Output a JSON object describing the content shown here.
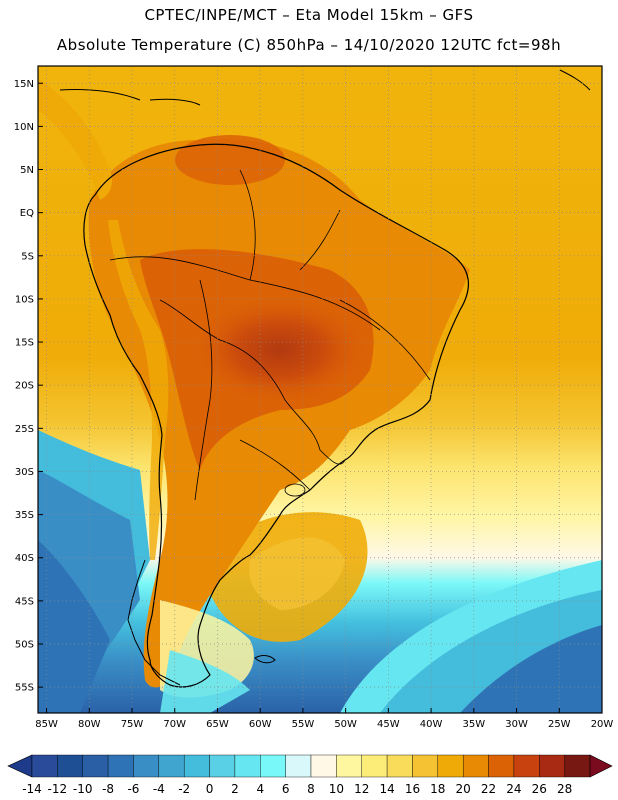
{
  "header": {
    "title_line1": "CPTEC/INPE/MCT –  Eta Model 15km – GFS",
    "title_line2": "Absolute Temperature (C) 850hPa – 14/10/2020 12UTC fct=98h"
  },
  "map": {
    "lat_labels": [
      "15N",
      "10N",
      "5N",
      "EQ",
      "5S",
      "10S",
      "15S",
      "20S",
      "25S",
      "30S",
      "35S",
      "40S",
      "45S",
      "50S",
      "55S"
    ],
    "lat_values": [
      15,
      10,
      5,
      0,
      -5,
      -10,
      -15,
      -20,
      -25,
      -30,
      -35,
      -40,
      -45,
      -50,
      -55
    ],
    "lon_labels": [
      "85W",
      "80W",
      "75W",
      "70W",
      "65W",
      "60W",
      "55W",
      "50W",
      "45W",
      "40W",
      "35W",
      "30W",
      "25W",
      "20W"
    ],
    "lon_values": [
      -85,
      -80,
      -75,
      -70,
      -65,
      -60,
      -55,
      -50,
      -45,
      -40,
      -35,
      -30,
      -25,
      -20
    ],
    "extent": {
      "lon_min": -86,
      "lon_max": -20,
      "lat_min": -58,
      "lat_max": 17
    }
  },
  "colorbar": {
    "labels": [
      "-14",
      "-12",
      "-10",
      "-8",
      "-6",
      "-4",
      "-2",
      "0",
      "2",
      "4",
      "6",
      "8",
      "10",
      "12",
      "14",
      "16",
      "18",
      "20",
      "22",
      "24",
      "26",
      "28"
    ],
    "colors": [
      "#2a4a9a",
      "#1e4f95",
      "#2a5ea5",
      "#2e73b5",
      "#3a8ec6",
      "#40a6d0",
      "#44bcdc",
      "#5ad0e6",
      "#66e6f0",
      "#78f8f8",
      "#d8f8fa",
      "#fff8e6",
      "#fff6a0",
      "#fcec78",
      "#f9dc5a",
      "#f4c232",
      "#f0aa08",
      "#e88a04",
      "#dc6206",
      "#c84210",
      "#a82a12",
      "#781812"
    ],
    "under_color": "#1e3a8a",
    "over_color": "#7a0a1e"
  }
}
